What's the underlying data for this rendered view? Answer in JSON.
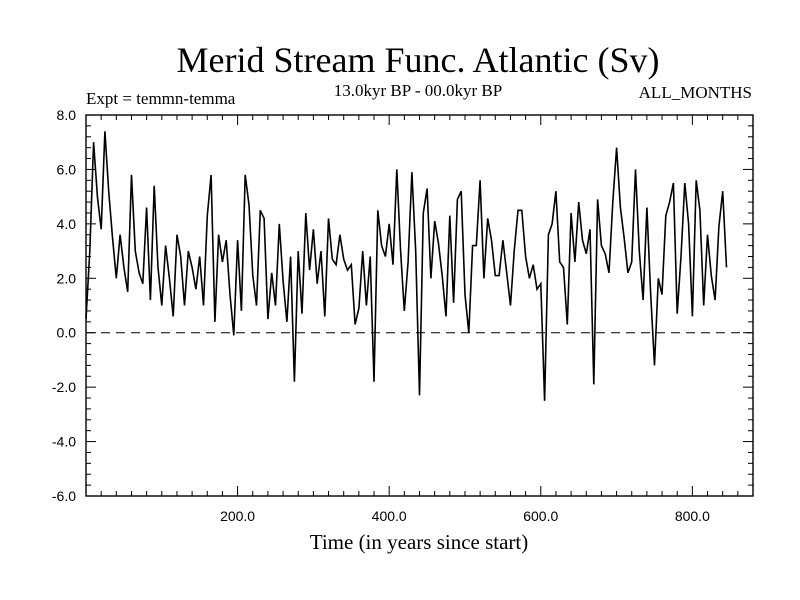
{
  "chart_data": {
    "type": "line",
    "title": "Merid Stream Func. Atlantic (Sv)",
    "experiment": "Expt = temmn-temma",
    "period": "13.0kyr BP - 00.0kyr BP",
    "season": "ALL_MONTHS",
    "xlabel": "Time (in years since start)",
    "ylabel": "",
    "xlim": [
      0,
      880
    ],
    "ylim": [
      -6,
      8
    ],
    "xticks": [
      200,
      400,
      600,
      800
    ],
    "xtick_labels": [
      "200.0",
      "400.0",
      "600.0",
      "800.0"
    ],
    "yticks": [
      -6,
      -4,
      -2,
      0,
      2,
      4,
      6,
      8
    ],
    "ytick_labels": [
      "-6.0",
      "-4.0",
      "-2.0",
      "0.0",
      "2.0",
      "4.0",
      "6.0",
      "8.0"
    ],
    "reference_line": {
      "y": 0,
      "style": "dashed"
    },
    "series": [
      {
        "name": "Merid Stream Func. Atlantic",
        "x_start": 0,
        "x_step": 5,
        "values": [
          0.5,
          3.0,
          7.0,
          5.0,
          3.8,
          7.4,
          5.2,
          3.5,
          2.0,
          3.6,
          2.4,
          1.5,
          5.8,
          3.0,
          2.2,
          1.8,
          4.6,
          1.2,
          5.4,
          2.4,
          1.0,
          3.2,
          2.0,
          0.6,
          3.6,
          2.8,
          1.0,
          3.0,
          2.4,
          1.6,
          2.8,
          1.0,
          4.3,
          5.8,
          0.4,
          3.6,
          2.6,
          3.4,
          1.4,
          -0.1,
          3.4,
          0.8,
          5.8,
          4.7,
          2.1,
          1.0,
          4.5,
          4.2,
          0.5,
          2.2,
          1.0,
          4.0,
          1.9,
          0.4,
          2.8,
          -1.8,
          3.0,
          0.7,
          4.4,
          2.3,
          3.8,
          1.8,
          3.0,
          0.6,
          4.2,
          2.7,
          2.5,
          3.6,
          2.7,
          2.3,
          2.5,
          0.3,
          0.9,
          3.0,
          1.0,
          2.8,
          -1.8,
          4.5,
          3.2,
          2.8,
          4.0,
          2.5,
          6.0,
          3.0,
          0.8,
          2.6,
          5.9,
          3.0,
          -2.3,
          4.4,
          5.3,
          2.0,
          4.1,
          3.3,
          2.1,
          0.6,
          4.3,
          1.1,
          4.9,
          5.2,
          1.4,
          0.0,
          3.2,
          3.2,
          5.6,
          2.0,
          4.2,
          3.4,
          2.1,
          2.1,
          3.4,
          2.2,
          1.0,
          3.0,
          4.5,
          4.5,
          2.8,
          2.0,
          2.5,
          1.6,
          1.8,
          -2.5,
          3.6,
          4.0,
          5.2,
          2.6,
          2.4,
          0.3,
          4.4,
          2.6,
          4.8,
          3.4,
          2.9,
          3.8,
          -1.9,
          4.9,
          3.2,
          2.9,
          2.2,
          4.8,
          6.8,
          4.6,
          3.5,
          2.2,
          2.6,
          6.0,
          3.0,
          1.2,
          4.6,
          1.4,
          -1.2,
          2.0,
          1.4,
          4.3,
          4.8,
          5.5,
          0.7,
          2.8,
          5.5,
          4.0,
          0.6,
          5.6,
          4.5,
          1.0,
          3.6,
          2.1,
          1.2,
          3.9,
          5.2,
          2.4
        ]
      }
    ]
  }
}
